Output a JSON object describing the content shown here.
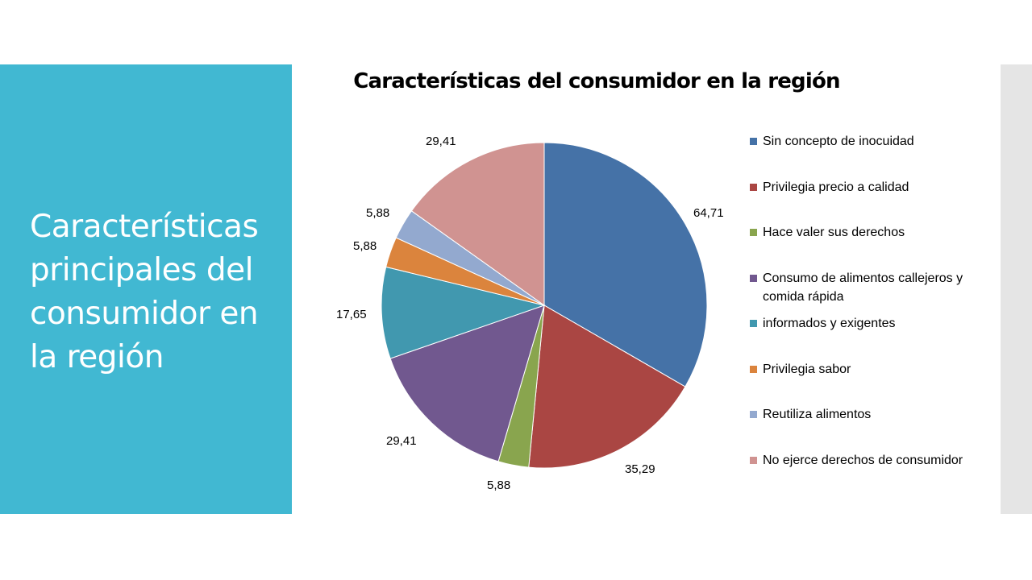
{
  "slide": {
    "title": "Características principales del consumidor en la región"
  },
  "chart_data": {
    "type": "pie",
    "title": "Características del consumidor en la región",
    "legend_position": "right",
    "categories": [
      "Sin concepto de inocuidad",
      "Privilegia precio a calidad",
      "Hace valer sus derechos",
      "Consumo de alimentos callejeros y comida rápida",
      "informados y exigentes",
      "Privilegia sabor",
      "Reutiliza alimentos",
      "No ejerce derechos de consumidor"
    ],
    "values": [
      64.71,
      35.29,
      5.88,
      29.41,
      17.65,
      5.88,
      5.88,
      29.41
    ],
    "data_labels": [
      "64,71",
      "35,29",
      "5,88",
      "29,41",
      "17,65",
      "5,88",
      "5,88",
      "29,41"
    ],
    "colors": [
      "#4572a7",
      "#aa4643",
      "#89a54e",
      "#71588f",
      "#4198af",
      "#db843d",
      "#93a9cf",
      "#d09391"
    ]
  }
}
